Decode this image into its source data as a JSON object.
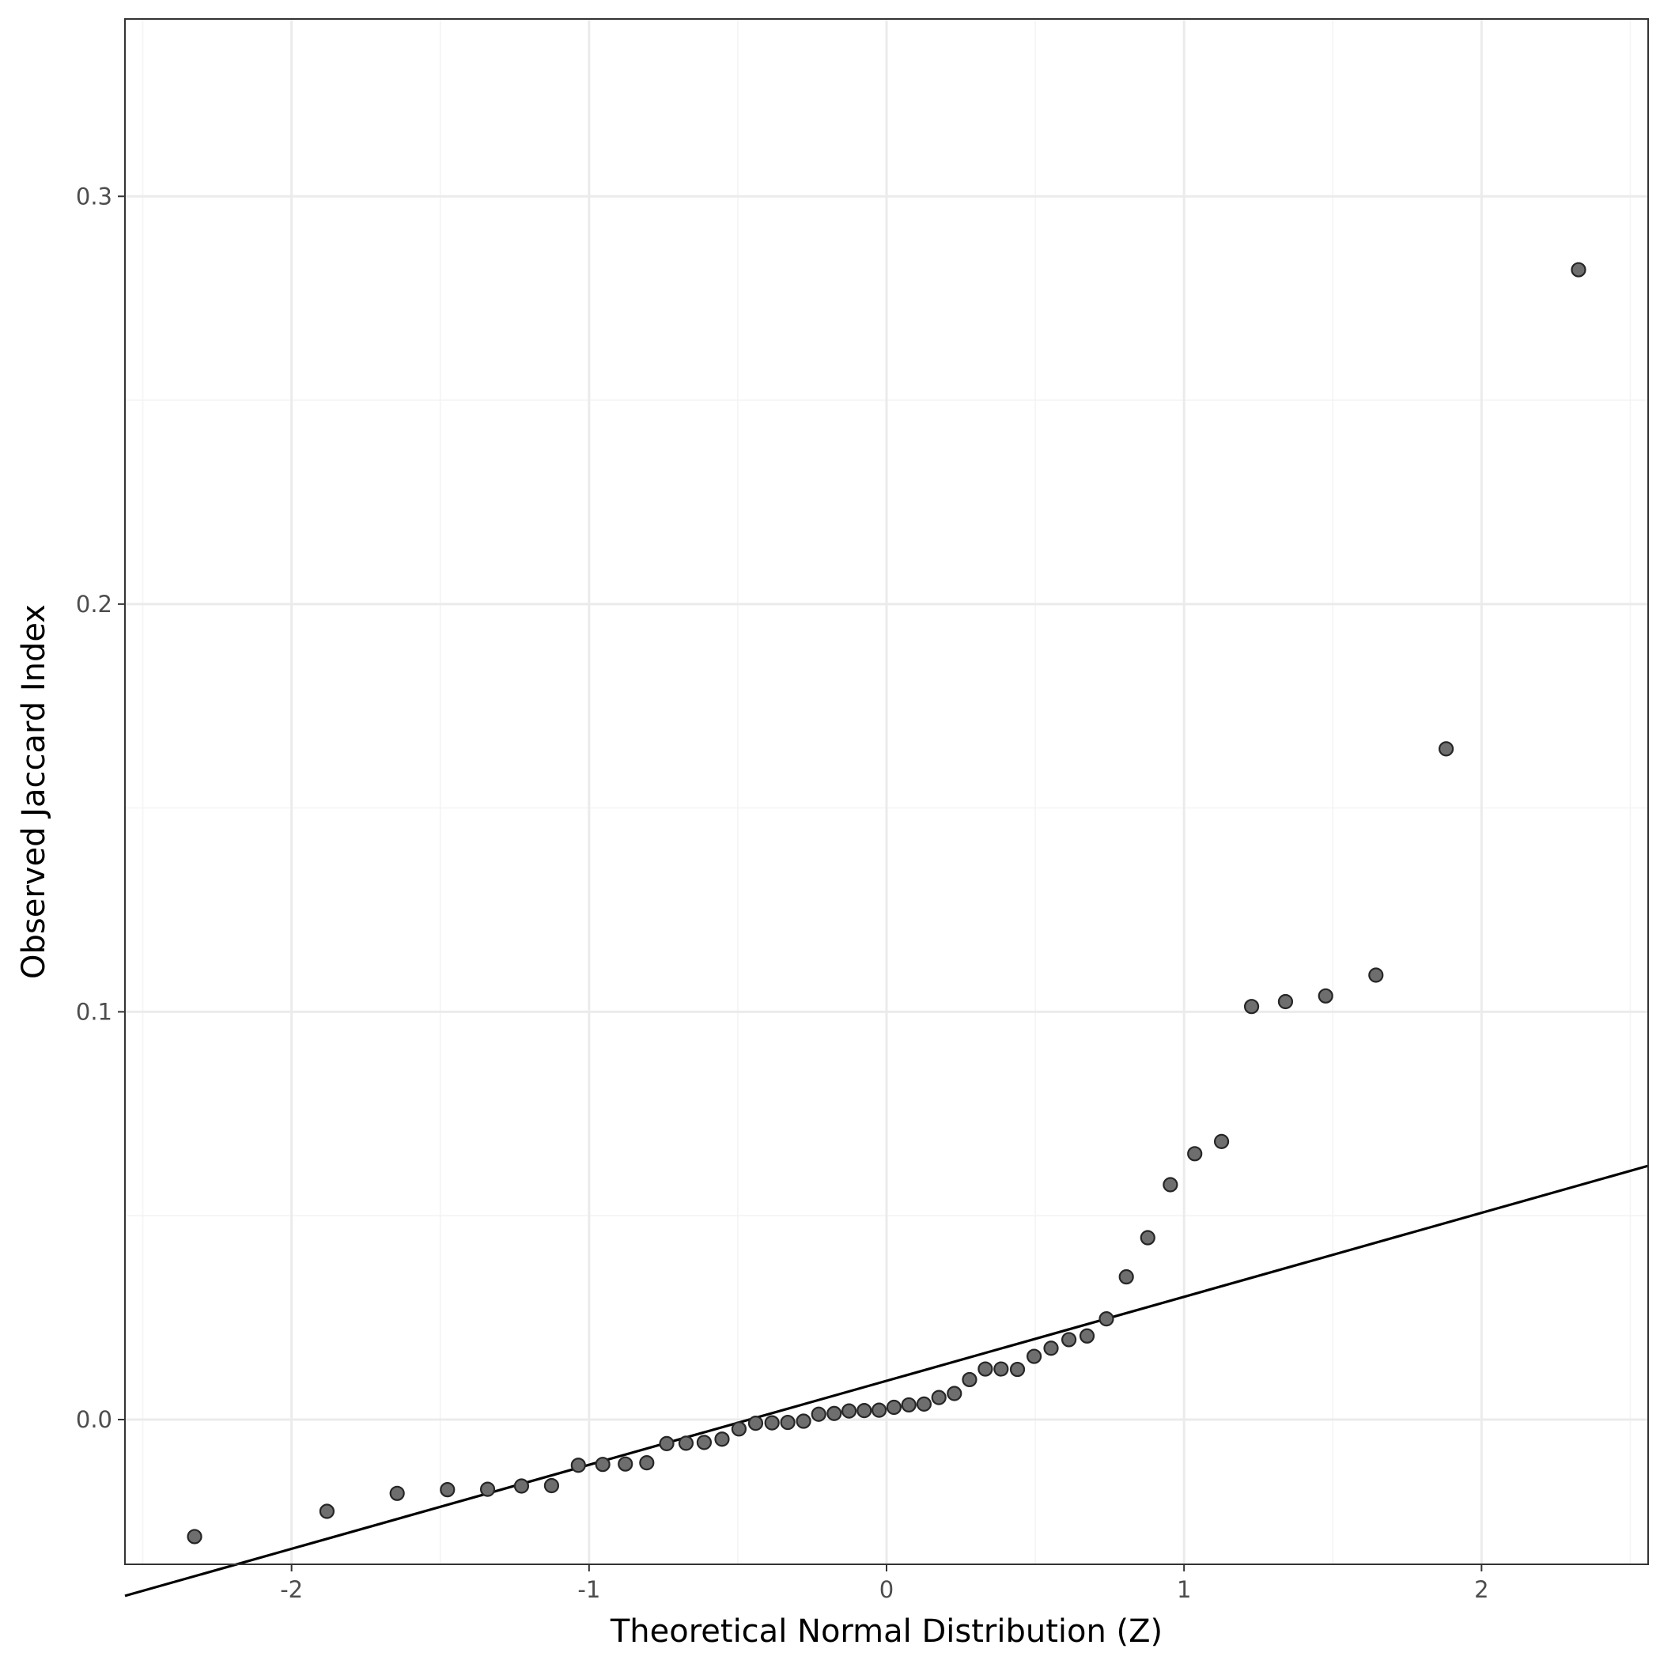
{
  "chart_data": {
    "type": "scatter",
    "title": "",
    "xlabel": "Theoretical Normal Distribution (Z)",
    "ylabel": "Observed Jaccard Index",
    "xlim": [
      -2.56,
      2.56
    ],
    "ylim": [
      -0.0355,
      0.3435
    ],
    "x_ticks": [
      -2,
      -1,
      0,
      1,
      2
    ],
    "x_tick_labels": [
      "-2",
      "-1",
      "0",
      "1",
      "2"
    ],
    "y_ticks": [
      0.0,
      0.1,
      0.2,
      0.3
    ],
    "y_tick_labels": [
      "0.0",
      "0.1",
      "0.2",
      "0.3"
    ],
    "grid": true,
    "legend": "none",
    "reference_line": {
      "intercept": 0.0095,
      "slope": 0.0206
    },
    "points": {
      "x": [
        -2.326,
        -1.881,
        -1.645,
        -1.476,
        -1.341,
        -1.227,
        -1.126,
        -1.036,
        -0.954,
        -0.878,
        -0.806,
        -0.739,
        -0.674,
        -0.613,
        -0.553,
        -0.496,
        -0.44,
        -0.385,
        -0.332,
        -0.279,
        -0.228,
        -0.176,
        -0.126,
        -0.075,
        -0.025,
        0.025,
        0.075,
        0.126,
        0.176,
        0.228,
        0.279,
        0.332,
        0.385,
        0.44,
        0.496,
        0.553,
        0.613,
        0.674,
        0.739,
        0.806,
        0.878,
        0.954,
        1.036,
        1.126,
        1.227,
        1.341,
        1.476,
        1.645,
        1.881,
        2.326
      ],
      "y": [
        -0.0287,
        -0.0225,
        -0.0181,
        -0.0172,
        -0.0171,
        -0.0163,
        -0.0162,
        -0.0112,
        -0.011,
        -0.0109,
        -0.0106,
        -0.0059,
        -0.0058,
        -0.0056,
        -0.0048,
        -0.0023,
        -0.0009,
        -0.0008,
        -0.0007,
        -0.0004,
        0.0013,
        0.0015,
        0.0021,
        0.0022,
        0.0023,
        0.003,
        0.0036,
        0.0038,
        0.0054,
        0.0064,
        0.0098,
        0.0124,
        0.0124,
        0.0123,
        0.0155,
        0.0175,
        0.0196,
        0.0205,
        0.0247,
        0.035,
        0.0446,
        0.0576,
        0.0652,
        0.0682,
        0.1013,
        0.1025,
        0.1039,
        0.109,
        0.1645,
        0.282
      ]
    },
    "colors": {
      "point_fill": "#6e6e6e",
      "point_stroke": "#262626",
      "line": "#000000",
      "grid_major": "#ebebeb",
      "grid_minor": "#f4f4f4",
      "panel_border": "#333333"
    }
  }
}
